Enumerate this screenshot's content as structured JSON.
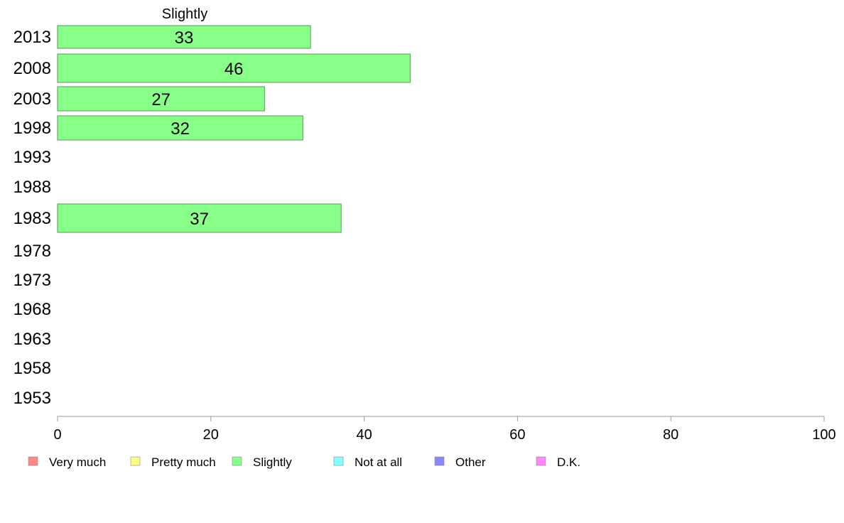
{
  "chart_data": {
    "type": "bar",
    "orientation": "horizontal",
    "title": "Slightly",
    "categories": [
      "2013",
      "2008",
      "2003",
      "1998",
      "1993",
      "1988",
      "1983",
      "1978",
      "1973",
      "1968",
      "1963",
      "1958",
      "1953"
    ],
    "series": [
      {
        "name": "Slightly",
        "values": [
          33,
          46,
          27,
          32,
          null,
          null,
          37,
          null,
          null,
          null,
          null,
          null,
          null
        ]
      }
    ],
    "data_labels": [
      "33",
      "46",
      "27",
      "32",
      "",
      "",
      "37",
      "",
      "",
      "",
      "",
      "",
      ""
    ],
    "xlim": [
      0,
      100
    ],
    "xticks": [
      0,
      20,
      40,
      60,
      80,
      100
    ],
    "bar_color": "#88ff88",
    "bar_stroke": "#5a9a5a",
    "axis_color": "#999999",
    "legend": {
      "placement": "bottom",
      "items": [
        {
          "label": "Very much",
          "color": "#ff8888"
        },
        {
          "label": "Pretty much",
          "color": "#ffff88"
        },
        {
          "label": "Slightly",
          "color": "#88ff88"
        },
        {
          "label": "Not at all",
          "color": "#88ffff"
        },
        {
          "label": "Other",
          "color": "#8888ff"
        },
        {
          "label": "D.K.",
          "color": "#ff88ff"
        }
      ]
    }
  }
}
